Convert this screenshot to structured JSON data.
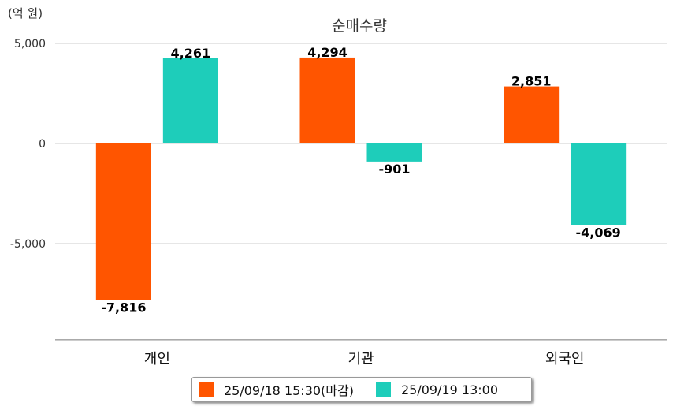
{
  "chart_data": {
    "type": "bar",
    "title": "순매수량",
    "unit": "(억 원)",
    "categories": [
      "개인",
      "기관",
      "외국인"
    ],
    "series": [
      {
        "name": "25/09/18 15:30(마감)",
        "color": "#FF5500",
        "values": [
          -7816,
          4294,
          2851
        ],
        "labels": [
          "-7,816",
          "4,294",
          "2,851"
        ]
      },
      {
        "name": "25/09/19 13:00",
        "color": "#1ECDBA",
        "values": [
          4261,
          -901,
          -4069
        ],
        "labels": [
          "4,261",
          "-901",
          "-4,069"
        ]
      }
    ],
    "yticks": [
      5000,
      0,
      -5000
    ],
    "ytick_labels": [
      "5,000",
      "0",
      "-5,000"
    ],
    "ylim": [
      -9800,
      5000
    ],
    "grid": true,
    "legend_position": "bottom"
  }
}
